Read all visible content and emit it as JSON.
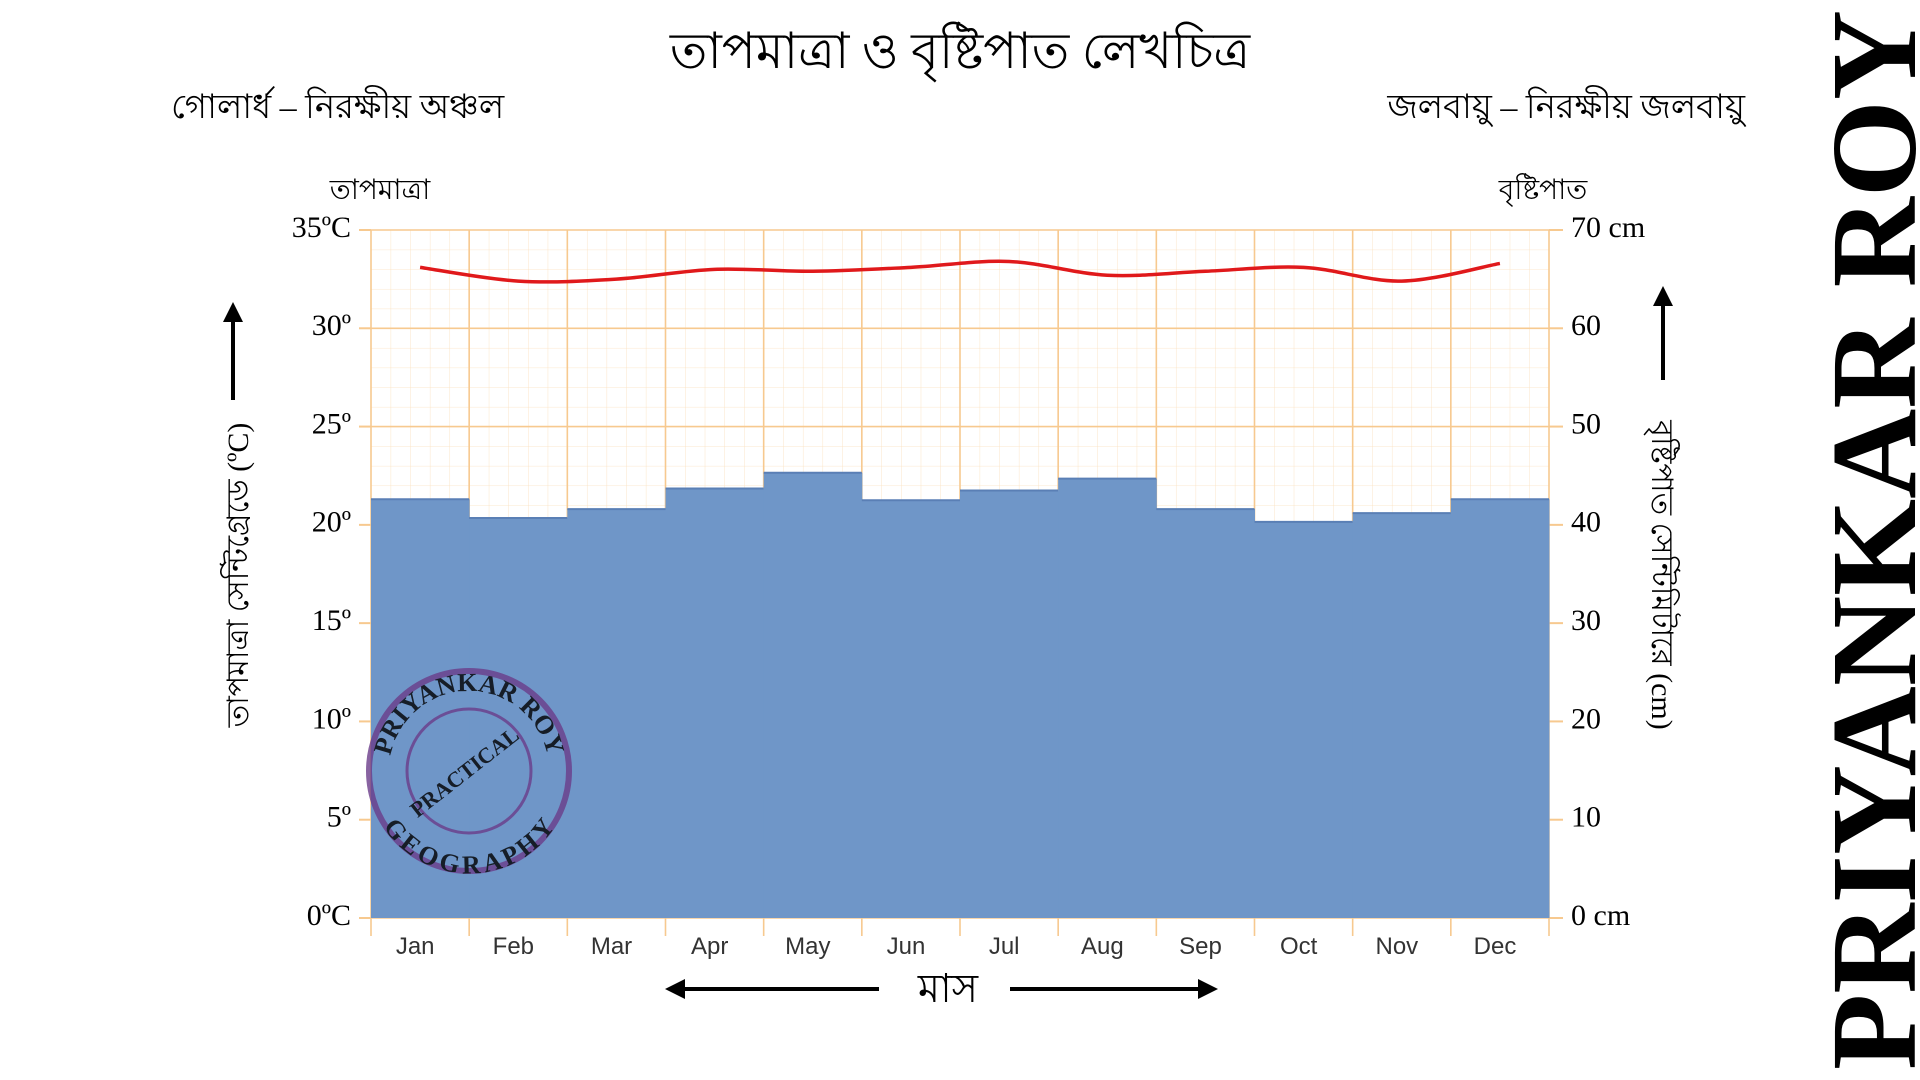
{
  "chart_data": {
    "type": "combo",
    "title": "তাপমাত্রা ও বৃষ্টিপাত লেখচিত্র",
    "subtitle_left": "গোলার্ধ – নিরক্ষীয় অঞ্চল",
    "subtitle_right": "জলবায়ু – নিরক্ষীয় জলবায়ু",
    "y_label": "তাপমাত্রা সেন্টিগ্রেডে (ºC)",
    "y2_label": "বৃষ্টিপাত সেন্টিমিটারে (cm)",
    "x_label": "মাস",
    "categories": [
      "Jan",
      "Feb",
      "Mar",
      "Apr",
      "May",
      "Jun",
      "Jul",
      "Aug",
      "Sep",
      "Oct",
      "Nov",
      "Dec"
    ],
    "series": [
      {
        "name": "বৃষ্টিপাত",
        "type": "bar",
        "axis": "y2",
        "color": "#6f96c8",
        "values": [
          42.6,
          40.7,
          41.6,
          43.7,
          45.3,
          42.5,
          43.5,
          44.7,
          41.6,
          40.3,
          41.2,
          42.6
        ]
      },
      {
        "name": "তাপমাত্রা",
        "type": "line",
        "axis": "y",
        "color": "#e0191b",
        "values": [
          33.1,
          32.4,
          32.5,
          33.0,
          32.9,
          33.1,
          33.4,
          32.7,
          32.9,
          33.1,
          32.4,
          33.3
        ]
      }
    ],
    "ylim": [
      0,
      35
    ],
    "yticks": [
      {
        "value": 0,
        "label": "0ºC"
      },
      {
        "value": 5,
        "label": "5º"
      },
      {
        "value": 10,
        "label": "10º"
      },
      {
        "value": 15,
        "label": "15º"
      },
      {
        "value": 20,
        "label": "20º"
      },
      {
        "value": 25,
        "label": "25º"
      },
      {
        "value": 30,
        "label": "30º"
      },
      {
        "value": 35,
        "label": "35ºC"
      }
    ],
    "y2lim": [
      0,
      70
    ],
    "y2ticks": [
      {
        "value": 0,
        "label": "0 cm"
      },
      10,
      20,
      30,
      40,
      50,
      60,
      {
        "value": 70,
        "label": "70 cm"
      }
    ],
    "grid": true,
    "grid_color": "#f7c98f",
    "watermark": "PRIYANKAR ROY",
    "stamp": [
      "PRIYANKAR ROY",
      "PRACTICAL",
      "GEOGRAPHY"
    ]
  }
}
